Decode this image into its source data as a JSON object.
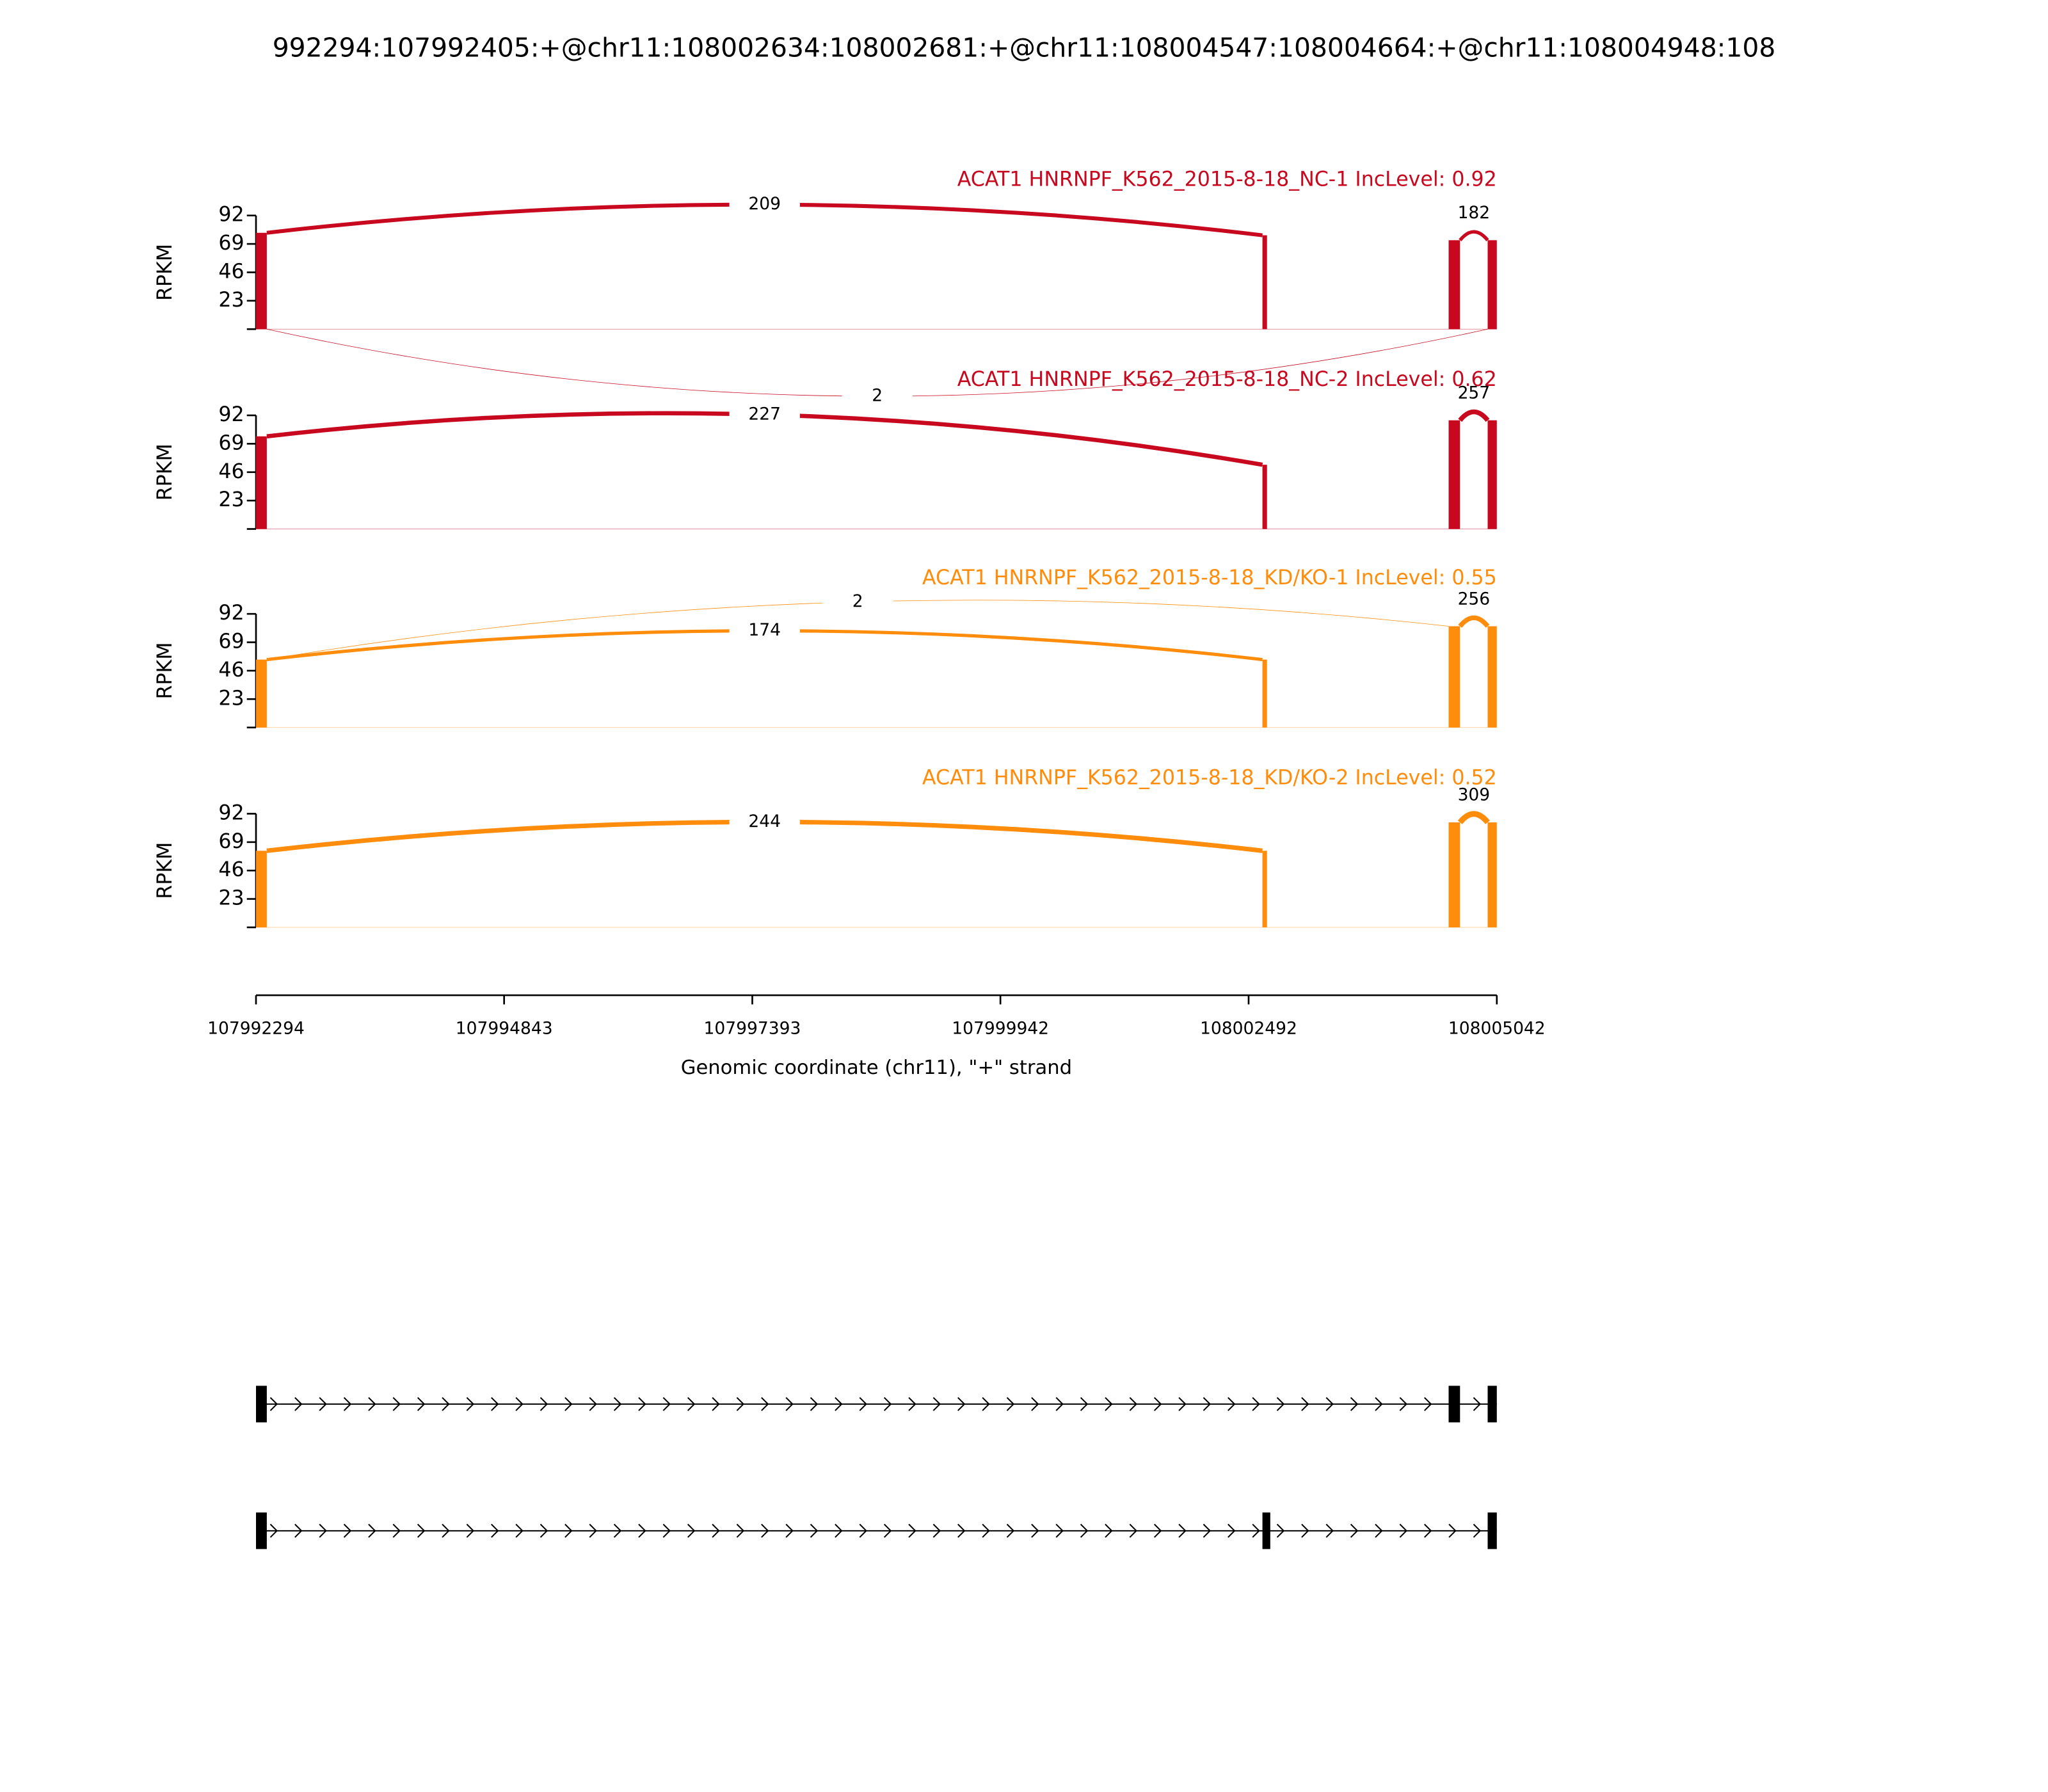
{
  "chart_data": {
    "type": "sashimi",
    "title": "992294:107992405:+@chr11:108002634:108002681:+@chr11:108004547:108004664:+@chr11:108004948:108",
    "xlabel": "Genomic coordinate (chr11), \"+\" strand",
    "ylabel": "RPKM",
    "xlim": [
      107992294,
      108005042
    ],
    "xticks": [
      107992294,
      107994843,
      107997393,
      107999942,
      108002492,
      108005042
    ],
    "exons": [
      [
        107992294,
        107992405
      ],
      [
        108002634,
        108002681
      ],
      [
        108004547,
        108004664
      ],
      [
        108004948,
        108005042
      ]
    ],
    "panels": [
      {
        "title": "ACAT1 HNRNPF_K562_2015-8-18_NC-1 IncLevel: 0.92",
        "color": "#c8081e",
        "ylim": [
          0,
          92
        ],
        "yticks": [
          23,
          46,
          69,
          92
        ],
        "coverage": [
          78,
          76,
          72,
          72
        ],
        "junctions": [
          {
            "start": 107992405,
            "end": 108002634,
            "count": 209,
            "side": "above"
          },
          {
            "start": 107992405,
            "end": 108004948,
            "count": 2,
            "side": "below"
          },
          {
            "start": 108004664,
            "end": 108004948,
            "count": 182,
            "side": "above"
          }
        ]
      },
      {
        "title": "ACAT1 HNRNPF_K562_2015-8-18_NC-2 IncLevel: 0.62",
        "color": "#c8081e",
        "ylim": [
          0,
          92
        ],
        "yticks": [
          23,
          46,
          69,
          92
        ],
        "coverage": [
          75,
          52,
          88,
          88
        ],
        "junctions": [
          {
            "start": 107992405,
            "end": 108002634,
            "count": 227,
            "side": "above"
          },
          {
            "start": 108004664,
            "end": 108004948,
            "count": 257,
            "side": "above"
          }
        ]
      },
      {
        "title": "ACAT1 HNRNPF_K562_2015-8-18_KD/KO-1 IncLevel: 0.55",
        "color": "#ff8c0a",
        "ylim": [
          0,
          92
        ],
        "yticks": [
          23,
          46,
          69,
          92
        ],
        "coverage": [
          55,
          55,
          82,
          82
        ],
        "junctions": [
          {
            "start": 107992405,
            "end": 108002634,
            "count": 174,
            "side": "above"
          },
          {
            "start": 107992405,
            "end": 108004547,
            "count": 2,
            "side": "above"
          },
          {
            "start": 108004664,
            "end": 108004948,
            "count": 256,
            "side": "above"
          }
        ]
      },
      {
        "title": "ACAT1 HNRNPF_K562_2015-8-18_KD/KO-2 IncLevel: 0.52",
        "color": "#ff8c0a",
        "ylim": [
          0,
          92
        ],
        "yticks": [
          23,
          46,
          69,
          92
        ],
        "coverage": [
          62,
          62,
          85,
          85
        ],
        "junctions": [
          {
            "start": 107992405,
            "end": 108002634,
            "count": 244,
            "side": "above"
          },
          {
            "start": 108004664,
            "end": 108004948,
            "count": 309,
            "side": "above"
          }
        ]
      }
    ],
    "transcripts": [
      [
        [
          107992294,
          107992405
        ],
        [
          108004547,
          108004664
        ],
        [
          108004948,
          108005042
        ]
      ],
      [
        [
          107992294,
          107992405
        ],
        [
          108002634,
          108002681
        ],
        [
          108004948,
          108005042
        ]
      ]
    ]
  }
}
